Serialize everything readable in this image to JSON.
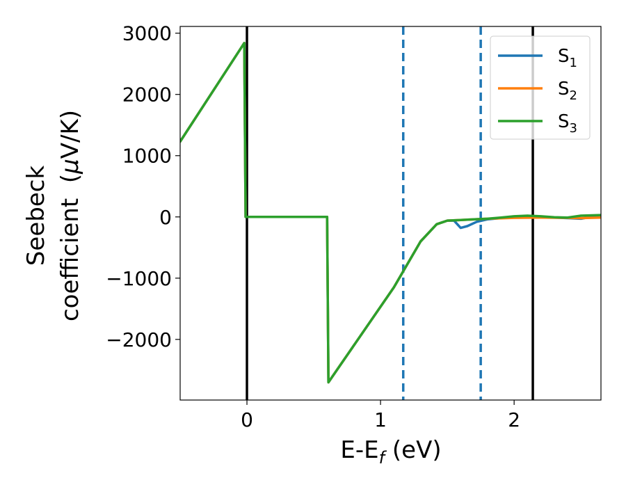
{
  "chart_data": {
    "type": "line",
    "title": "",
    "xlabel": {
      "main": "E-E",
      "sub": "f",
      "suffix": " (eV)"
    },
    "ylabel": {
      "line1": "Seebeck",
      "line2_text": "coefficient  (",
      "line2_mu": "μ",
      "line2_unit": "V/K)"
    },
    "xlim": [
      -0.5,
      2.65
    ],
    "ylim": [
      -2990,
      3110
    ],
    "xticks": [
      {
        "value": 0,
        "label": "0"
      },
      {
        "value": 1,
        "label": "1"
      },
      {
        "value": 2,
        "label": "2"
      }
    ],
    "yticks": [
      {
        "value": -2000,
        "label": "−2000"
      },
      {
        "value": -1000,
        "label": "−1000"
      },
      {
        "value": 0,
        "label": "0"
      },
      {
        "value": 1000,
        "label": "1000"
      },
      {
        "value": 2000,
        "label": "2000"
      },
      {
        "value": 3000,
        "label": "3000"
      }
    ],
    "grid": false,
    "legend_position": "top-right",
    "vertical_lines": [
      {
        "x": 0.0,
        "style": "solid",
        "color": "#000000"
      },
      {
        "x": 1.17,
        "style": "dashed",
        "color": "#1f77b4"
      },
      {
        "x": 1.75,
        "style": "dashed",
        "color": "#1f77b4"
      },
      {
        "x": 2.14,
        "style": "solid",
        "color": "#000000"
      }
    ],
    "series": [
      {
        "name": "S",
        "sub": "1",
        "color": "#1f77b4",
        "points": [
          [
            -0.5,
            1230
          ],
          [
            -0.02,
            2840
          ],
          [
            -0.01,
            0
          ],
          [
            0.6,
            0
          ],
          [
            0.61,
            -2700
          ],
          [
            1.1,
            -1150
          ],
          [
            1.3,
            -400
          ],
          [
            1.42,
            -120
          ],
          [
            1.5,
            -60
          ],
          [
            1.55,
            -60
          ],
          [
            1.6,
            -180
          ],
          [
            1.65,
            -150
          ],
          [
            1.72,
            -80
          ],
          [
            1.8,
            -40
          ],
          [
            1.9,
            -20
          ],
          [
            2.0,
            -10
          ],
          [
            2.1,
            0
          ],
          [
            2.2,
            -10
          ],
          [
            2.3,
            -10
          ],
          [
            2.4,
            -20
          ],
          [
            2.5,
            -30
          ],
          [
            2.55,
            -10
          ],
          [
            2.65,
            0
          ]
        ]
      },
      {
        "name": "S",
        "sub": "2",
        "color": "#ff7f0e",
        "points": [
          [
            -0.5,
            1230
          ],
          [
            -0.02,
            2840
          ],
          [
            -0.01,
            0
          ],
          [
            0.6,
            0
          ],
          [
            0.61,
            -2700
          ],
          [
            1.1,
            -1150
          ],
          [
            1.3,
            -400
          ],
          [
            1.42,
            -120
          ],
          [
            1.5,
            -60
          ],
          [
            1.6,
            -50
          ],
          [
            1.8,
            -30
          ],
          [
            2.0,
            -15
          ],
          [
            2.2,
            -10
          ],
          [
            2.4,
            -15
          ],
          [
            2.5,
            -20
          ],
          [
            2.65,
            -10
          ]
        ]
      },
      {
        "name": "S",
        "sub": "3",
        "color": "#2ca02c",
        "points": [
          [
            -0.5,
            1230
          ],
          [
            -0.02,
            2840
          ],
          [
            -0.01,
            0
          ],
          [
            0.6,
            0
          ],
          [
            0.61,
            -2700
          ],
          [
            1.1,
            -1150
          ],
          [
            1.3,
            -400
          ],
          [
            1.42,
            -120
          ],
          [
            1.5,
            -60
          ],
          [
            1.6,
            -50
          ],
          [
            1.7,
            -40
          ],
          [
            1.8,
            -30
          ],
          [
            1.9,
            -10
          ],
          [
            2.0,
            10
          ],
          [
            2.1,
            20
          ],
          [
            2.2,
            10
          ],
          [
            2.3,
            -5
          ],
          [
            2.4,
            -10
          ],
          [
            2.5,
            20
          ],
          [
            2.65,
            30
          ]
        ]
      }
    ]
  }
}
